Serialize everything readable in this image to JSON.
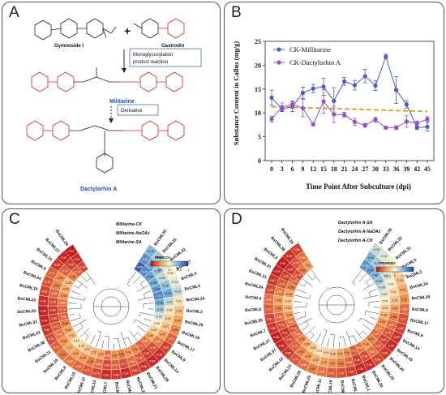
{
  "panels": {
    "a": {
      "letter": "A",
      "gymnoside_label": "Gymnoside I",
      "plus": "+",
      "gastrodin_label": "Gastrodin",
      "reaction_label_1": "Monoglycosylation",
      "reaction_label_2": "product reaction",
      "militarine_label": "Militarine",
      "derivative_label": "Derivative",
      "dactylorhin_label": "Dactylorhin A"
    },
    "b": {
      "letter": "B"
    },
    "c": {
      "letter": "C",
      "legend_title": "PPMCC#",
      "legend_ticks": [
        "1",
        "0.5",
        "0",
        "-0.5",
        "-1"
      ],
      "track_labels": [
        "Militarine-CK",
        "Militarine-NaOAc",
        "Militarine-SA"
      ],
      "genes": [
        "BsCML30",
        "BsCML35",
        "BsCML32",
        "BsCML7",
        "BsCML4",
        "BsCML5",
        "BsCML34",
        "BsCML2",
        "BsCML25",
        "BsCML18",
        "BsCML17",
        "BsCML6",
        "BsCML14",
        "BsCML28",
        "BsCML21",
        "BsCML26",
        "BsCML12",
        "BsCML13",
        "BsCML1",
        "BsCML33",
        "BsCML37",
        "BsCML19",
        "BsCML8",
        "BsCML16",
        "BsCML11",
        "BsCML38",
        "BsCML23",
        "BsCML31",
        "BsCML20",
        "BsCML22",
        "BsCML10",
        "BsCML24",
        "BsCML9",
        "BsCML15",
        "BsCML27",
        "BsCML29"
      ],
      "values": [
        [
          -0.86,
          -0.64,
          -0.42
        ],
        [
          -0.67,
          -0.5,
          -0.3
        ],
        [
          -0.54,
          -0.32,
          -0.12
        ],
        [
          -0.49,
          -0.2,
          0.05
        ],
        [
          -0.54,
          -0.36,
          -0.1
        ],
        [
          -0.7,
          -0.5,
          -0.2
        ],
        [
          -0.48,
          -0.21,
          0.11
        ],
        [
          -0.32,
          0.09,
          0.3
        ],
        [
          -0.15,
          0.21,
          0.44
        ],
        [
          0.05,
          0.27,
          0.55
        ],
        [
          0.2,
          0.42,
          0.7
        ],
        [
          0.4,
          0.61,
          0.83
        ],
        [
          0.62,
          0.78,
          0.9
        ],
        [
          0.71,
          0.85,
          0.93
        ],
        [
          0.55,
          0.72,
          0.88
        ],
        [
          0.48,
          0.66,
          0.81
        ],
        [
          0.6,
          0.77,
          0.92
        ],
        [
          0.52,
          0.7,
          0.86
        ],
        [
          0.66,
          0.8,
          0.91
        ],
        [
          0.43,
          0.64,
          0.79
        ],
        [
          0.35,
          0.58,
          0.74
        ],
        [
          0.27,
          0.49,
          0.68
        ],
        [
          0.18,
          0.44,
          0.63
        ],
        [
          0.1,
          0.37,
          0.6
        ],
        [
          0.31,
          0.51,
          0.7
        ],
        [
          0.45,
          0.62,
          0.78
        ],
        [
          0.58,
          0.73,
          0.87
        ],
        [
          0.69,
          0.82,
          0.94
        ],
        [
          0.74,
          0.86,
          0.95
        ],
        [
          0.63,
          0.79,
          0.9
        ],
        [
          0.5,
          0.68,
          0.82
        ],
        [
          0.4,
          0.59,
          0.76
        ],
        [
          0.3,
          0.53,
          0.71
        ],
        [
          0.56,
          0.71,
          0.85
        ],
        [
          0.72,
          0.84,
          0.93
        ],
        [
          0.82,
          0.91,
          0.97
        ]
      ]
    },
    "d": {
      "letter": "D",
      "legend_title": "PPMCC#",
      "legend_ticks": [
        "1",
        "0.5",
        "0",
        "-0.5",
        "-1"
      ],
      "track_labels": [
        "Dactylorhin A-SA",
        "Dactylorhin A-NaOAc",
        "Dactylorhin A-CK"
      ],
      "genes": [
        "BsCML36",
        "BsCML32",
        "BsCML22",
        "BsCML5",
        "BsCML3",
        "BsCML34",
        "BsCML29",
        "BsCML6",
        "BsCML17",
        "BsCML9",
        "BsCML14",
        "BsCML15",
        "BsCML26",
        "BsCML20",
        "BsCML30",
        "BsCML1",
        "BsCML18",
        "BsCML10",
        "BsCML19",
        "BsCML11",
        "BsCML25",
        "BsCML28",
        "BsCML23",
        "BsCML12",
        "BsCML37",
        "BsCML27",
        "BsCML7",
        "BsCML35",
        "BsCML8",
        "BsCML4",
        "BsCML24",
        "BsCML13",
        "BsCML31",
        "BsCML2",
        "BsCML38",
        "BsCML16"
      ],
      "values": [
        [
          -0.62,
          -0.44,
          -0.2
        ],
        [
          -0.55,
          -0.3,
          -0.1
        ],
        [
          -0.41,
          -0.27,
          0.05
        ],
        [
          -0.35,
          -0.12,
          0.18
        ],
        [
          -0.2,
          0.03,
          0.28
        ],
        [
          -0.1,
          0.16,
          0.4
        ],
        [
          0.05,
          0.28,
          0.52
        ],
        [
          0.22,
          0.44,
          0.66
        ],
        [
          0.36,
          0.58,
          0.77
        ],
        [
          0.5,
          0.67,
          0.83
        ],
        [
          0.61,
          0.75,
          0.89
        ],
        [
          0.68,
          0.81,
          0.92
        ],
        [
          0.57,
          0.72,
          0.86
        ],
        [
          0.46,
          0.64,
          0.8
        ],
        [
          0.64,
          0.78,
          0.9
        ],
        [
          0.73,
          0.85,
          0.94
        ],
        [
          0.52,
          0.69,
          0.84
        ],
        [
          0.42,
          0.6,
          0.77
        ],
        [
          0.3,
          0.52,
          0.71
        ],
        [
          0.19,
          0.43,
          0.64
        ],
        [
          0.11,
          0.35,
          0.59
        ],
        [
          0.25,
          0.47,
          0.66
        ],
        [
          0.39,
          0.57,
          0.74
        ],
        [
          0.55,
          0.7,
          0.85
        ],
        [
          0.66,
          0.79,
          0.91
        ],
        [
          0.76,
          0.87,
          0.95
        ],
        [
          0.62,
          0.76,
          0.88
        ],
        [
          0.49,
          0.66,
          0.81
        ],
        [
          0.34,
          0.55,
          0.72
        ],
        [
          0.24,
          0.45,
          0.65
        ],
        [
          0.44,
          0.61,
          0.78
        ],
        [
          0.58,
          0.74,
          0.87
        ],
        [
          0.7,
          0.83,
          0.93
        ],
        [
          0.79,
          0.89,
          0.96
        ],
        [
          0.6,
          0.75,
          0.89
        ],
        [
          0.47,
          0.65,
          0.82
        ]
      ]
    }
  },
  "chart_data": {
    "type": "line",
    "xlabel": "Time Point After Subculture (dpi)",
    "ylabel": "Substance Content in Callus (mg/g)",
    "x": [
      0,
      3,
      6,
      9,
      12,
      15,
      18,
      21,
      24,
      27,
      30,
      33,
      36,
      39,
      42,
      45
    ],
    "ylim": [
      0,
      25
    ],
    "yticks": [
      0,
      5,
      10,
      15,
      20,
      25
    ],
    "series": [
      {
        "name": "CK-Millitarine",
        "color": "#4b5bc4",
        "values": [
          13.2,
          10.8,
          11.3,
          14.2,
          15.1,
          15.5,
          12.5,
          16.6,
          15.8,
          17.7,
          15.7,
          21.8,
          14.8,
          11.8,
          6.9,
          7.1
        ],
        "errors": [
          1.6,
          0.5,
          1.0,
          1.2,
          0.9,
          1.8,
          2.8,
          0.8,
          1.0,
          1.4,
          1.0,
          0.5,
          2.8,
          0.8,
          0.4,
          0.9
        ]
      },
      {
        "name": "CK-Dactylorhin A",
        "color": "#9b4fbf",
        "values": [
          8.7,
          11.2,
          11.8,
          11.0,
          7.6,
          12.4,
          9.7,
          9.6,
          8.1,
          7.4,
          8.6,
          6.9,
          6.9,
          8.2,
          7.8,
          8.7
        ],
        "errors": [
          0.6,
          0.9,
          0.7,
          1.8,
          0.3,
          2.5,
          1.7,
          0.5,
          0.7,
          0.4,
          0.5,
          0.3,
          0.4,
          1.2,
          0.5,
          0.5
        ]
      }
    ],
    "trendline": {
      "color": "#e39b1c",
      "start": 11.3,
      "end": 10.3
    },
    "legend": "top-left"
  }
}
